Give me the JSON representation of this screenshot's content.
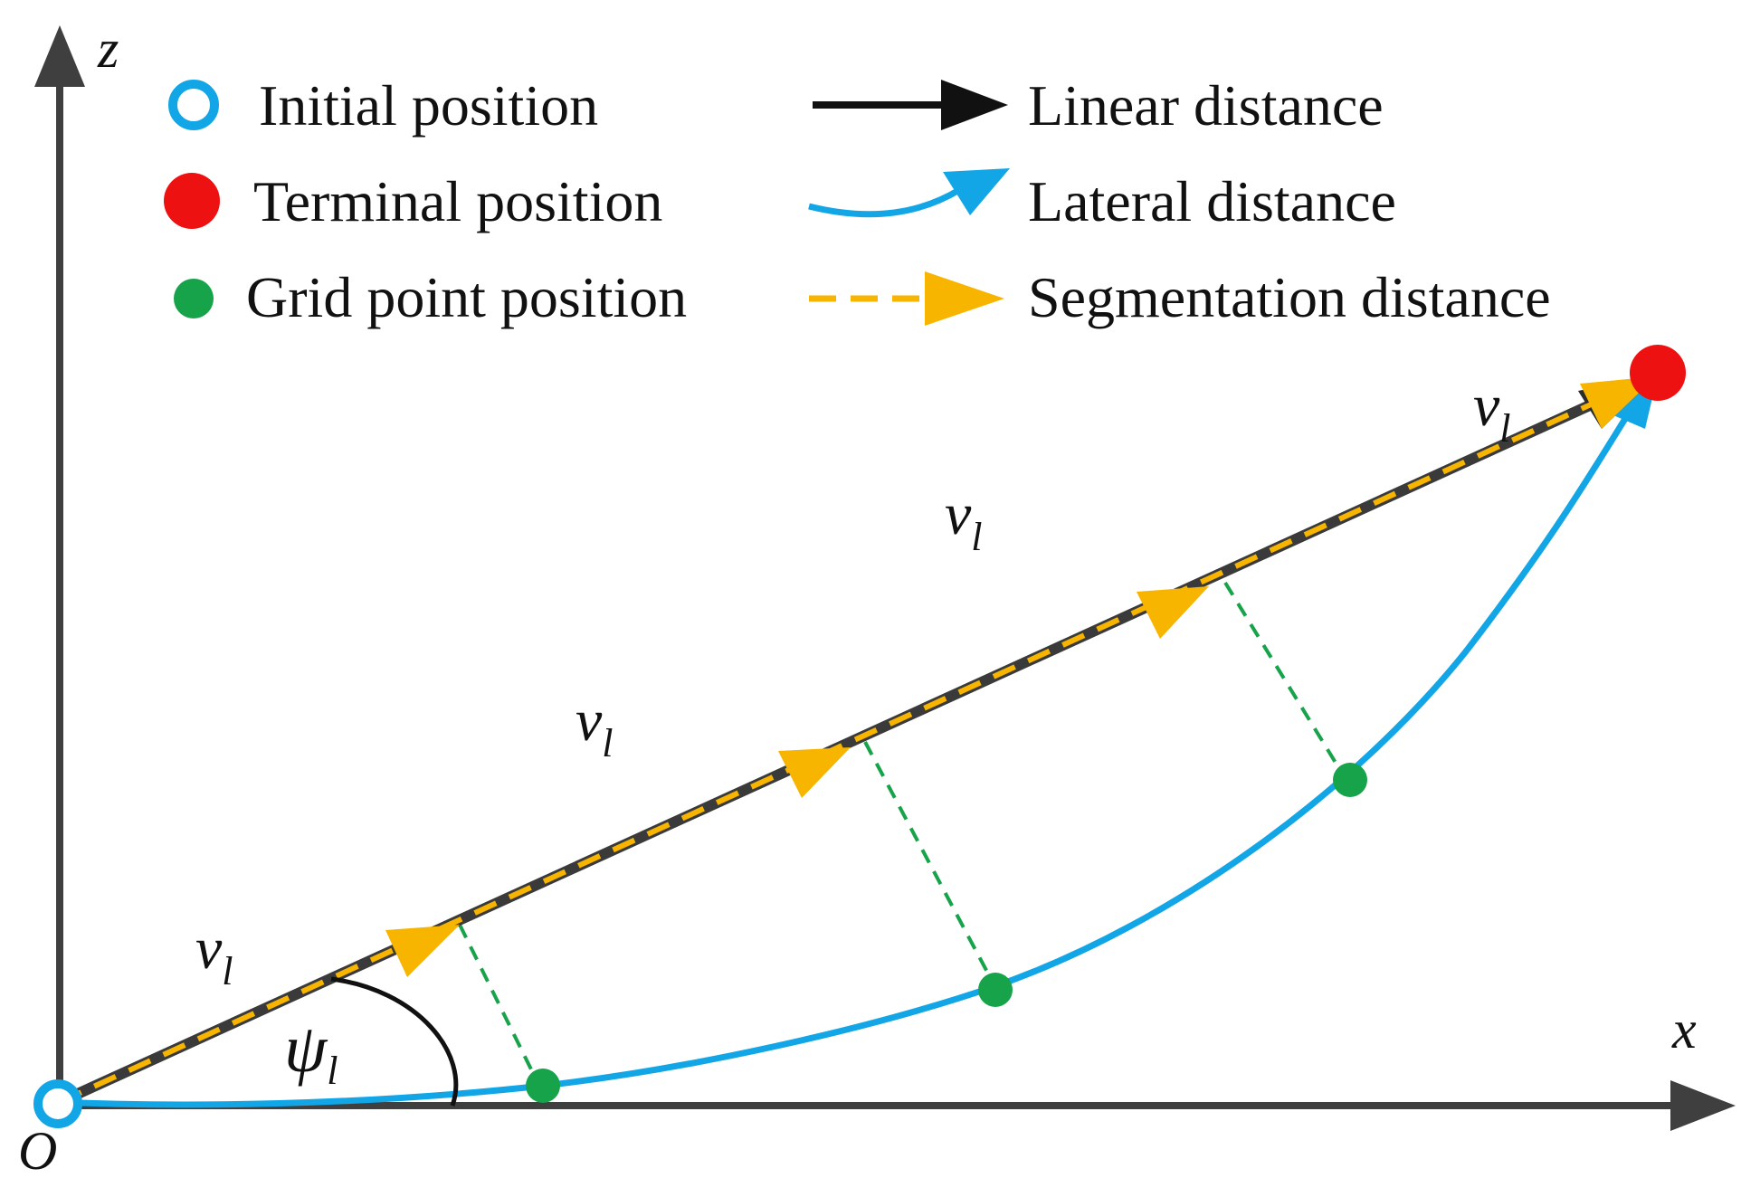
{
  "axes": {
    "x_label": "x",
    "z_label": "z",
    "origin_label": "O"
  },
  "legend": {
    "initial_position": "Initial position",
    "terminal_position": "Terminal position",
    "grid_point_position": "Grid point position",
    "linear_distance": "Linear distance",
    "lateral_distance": "Lateral distance",
    "segmentation_distance": "Segmentation distance"
  },
  "labels": {
    "velocity_symbol": "v",
    "velocity_subscript": "l",
    "angle_symbol": "ψ",
    "angle_subscript": "l"
  },
  "colors": {
    "axis": "#3f3f3f",
    "initial_marker": "#12a6e6",
    "terminal_marker": "#ee1111",
    "grid_point": "#16a34a",
    "linear_line": "#3a3a3a",
    "lateral_curve": "#12a6e6",
    "segmentation": "#f7b500",
    "perpendicular": "#16a34a"
  }
}
